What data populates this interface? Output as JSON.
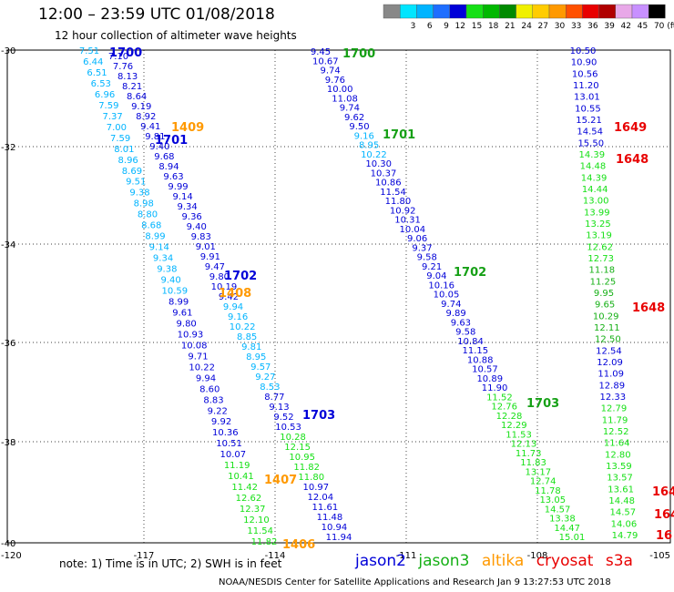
{
  "header": {
    "title": "12:00  –  23:59  UTC 01/08/2018",
    "subtitle": "12 hour collection of altimeter wave heights"
  },
  "color_scale": {
    "unit_label": "(ft)",
    "bins": [
      {
        "label": "",
        "color": "#888888"
      },
      {
        "label": "3",
        "color": "#00e5ff"
      },
      {
        "label": "6",
        "color": "#00b4ff"
      },
      {
        "label": "9",
        "color": "#1e6eff"
      },
      {
        "label": "12",
        "color": "#0000d8"
      },
      {
        "label": "15",
        "color": "#16e016"
      },
      {
        "label": "18",
        "color": "#00b800"
      },
      {
        "label": "21",
        "color": "#008a00"
      },
      {
        "label": "24",
        "color": "#f0f000"
      },
      {
        "label": "27",
        "color": "#ffcc00"
      },
      {
        "label": "30",
        "color": "#ff9900"
      },
      {
        "label": "33",
        "color": "#ff5000"
      },
      {
        "label": "36",
        "color": "#e80000"
      },
      {
        "label": "39",
        "color": "#b00000"
      },
      {
        "label": "42",
        "color": "#e8a8e8"
      },
      {
        "label": "45",
        "color": "#c890ff"
      },
      {
        "label": "70",
        "color": "#000000"
      }
    ]
  },
  "map": {
    "lon_ticks": [
      "-120",
      "-117",
      "-114",
      "-111",
      "-108",
      "-105"
    ],
    "lat_ticks": [
      "-30",
      "-32",
      "-34",
      "-36",
      "-38",
      "-40"
    ]
  },
  "footer": {
    "note": "note:  1) Time is in UTC;  2) SWH is in feet",
    "satellites": [
      {
        "name": "jason2",
        "color": "#0000d8"
      },
      {
        "name": "jason3",
        "color": "#16b016"
      },
      {
        "name": "altika",
        "color": "#ff9900"
      },
      {
        "name": "cryosat",
        "color": "#e80000"
      },
      {
        "name": "s3a",
        "color": "#e80000"
      }
    ],
    "credit": "NOAA/NESDIS Center for Satellite Applications and Research    Jan  9 13:27:53 UTC 2018"
  },
  "tracks": [
    {
      "color": "#00b4ff",
      "values": [
        "7.51",
        "6.44",
        "6.51",
        "6.53",
        "6.96",
        "7.59",
        "7.37",
        "7.00",
        "7.59",
        "8.01",
        "8.96",
        "8.69",
        "9.51",
        "9.38",
        "8.98",
        "8.80",
        "8.68",
        "8.99",
        "9.14",
        "9.34",
        "9.38",
        "9.40",
        "10.59",
        "8.99",
        "9.61",
        "9.80",
        "10.93",
        "10.08",
        "9.71",
        "10.22",
        "9.94",
        "8.60",
        "8.83",
        "9.22",
        "9.92",
        "10.36",
        "10.51",
        "10.07",
        "11.19",
        "10.41",
        "11.42",
        "12.62",
        "12.37",
        "12.10",
        "11.54",
        "11.82"
      ]
    },
    {
      "color": "#0000d8",
      "values": [
        "7.10",
        "7.76",
        "8.13",
        "8.21",
        "8.64",
        "9.19",
        "8.92",
        "9.41",
        "9.81",
        "9.40",
        "9.68",
        "8.94",
        "9.63",
        "9.99",
        "9.14",
        "9.34",
        "9.36",
        "9.40",
        "9.83",
        "9.01",
        "9.91",
        "9.47",
        "9.80",
        "10.19",
        "9.42",
        "9.94",
        "9.16",
        "10.22",
        "8.85",
        "9.81",
        "8.95",
        "9.57",
        "9.27",
        "8.53",
        "8.77",
        "9.13",
        "9.52",
        "10.53",
        "10.28",
        "12.15",
        "10.95",
        "11.82",
        "11.80",
        "10.97",
        "12.04",
        "11.61",
        "11.48",
        "10.94",
        "11.94"
      ]
    },
    {
      "color": "#0000d8",
      "values": [
        "9.45",
        "10.67",
        "9.74",
        "9.76",
        "10.00",
        "11.08",
        "9.74",
        "9.62",
        "9.50",
        "9.16",
        "8.95",
        "10.22",
        "10.30",
        "10.37",
        "10.86",
        "11.54",
        "11.80",
        "10.92",
        "10.31",
        "10.04",
        "9.06",
        "9.37",
        "9.58",
        "9.21",
        "9.04",
        "10.16",
        "10.05",
        "9.74",
        "9.89",
        "9.63",
        "9.58",
        "10.84",
        "11.15",
        "10.88",
        "10.57",
        "10.89",
        "11.90",
        "11.52",
        "12.76",
        "12.28",
        "12.29",
        "11.53",
        "12.13",
        "11.73",
        "11.83",
        "13.17",
        "12.74",
        "11.78",
        "13.05",
        "14.57",
        "13.38",
        "14.47",
        "15.01"
      ]
    },
    {
      "color": "#0000d8",
      "values": [
        "10.50",
        "10.90",
        "10.56",
        "11.20",
        "13.01",
        "10.55",
        "15.21",
        "14.54",
        "15.50",
        "14.39",
        "14.48",
        "14.39",
        "14.44",
        "13.00",
        "13.99",
        "13.25",
        "13.19",
        "12.62",
        "12.73",
        "11.18",
        "11.25",
        "9.95",
        "9.65",
        "10.29",
        "12.11",
        "12.50",
        "12.54",
        "12.09",
        "11.09",
        "12.89",
        "12.33",
        "12.79",
        "11.79",
        "12.52",
        "11.64",
        "12.80",
        "13.59",
        "13.57",
        "13.61",
        "14.48",
        "14.57",
        "14.06",
        "14.79"
      ]
    }
  ],
  "track_labels": [
    {
      "text": "1700",
      "color": "#0000d8"
    },
    {
      "text": "1700",
      "color": "#16a016"
    },
    {
      "text": "1409",
      "color": "#ff9900"
    },
    {
      "text": "1701",
      "color": "#0000d8"
    },
    {
      "text": "1701",
      "color": "#16a016"
    },
    {
      "text": "1649",
      "color": "#e80000"
    },
    {
      "text": "1648",
      "color": "#e80000"
    },
    {
      "text": "1702",
      "color": "#0000d8"
    },
    {
      "text": "1702",
      "color": "#16a016"
    },
    {
      "text": "1408",
      "color": "#ff9900"
    },
    {
      "text": "1648",
      "color": "#e80000"
    },
    {
      "text": "1703",
      "color": "#0000d8"
    },
    {
      "text": "1703",
      "color": "#16a016"
    },
    {
      "text": "1407",
      "color": "#ff9900"
    },
    {
      "text": "1406",
      "color": "#ff9900"
    },
    {
      "text": "164",
      "color": "#e80000"
    },
    {
      "text": "164",
      "color": "#e80000"
    },
    {
      "text": "16",
      "color": "#e80000"
    }
  ]
}
